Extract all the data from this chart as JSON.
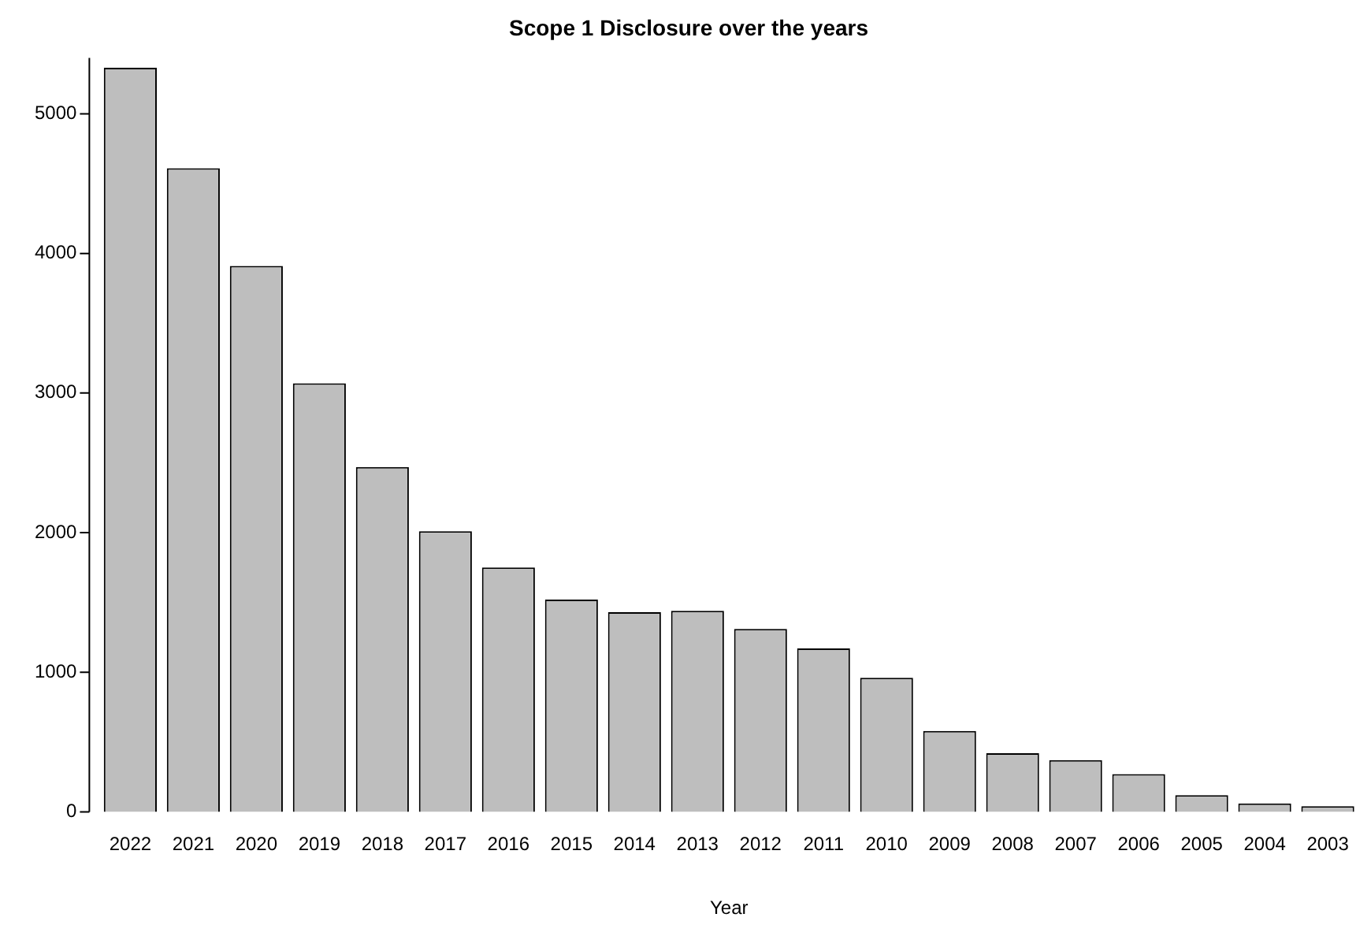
{
  "chart_data": {
    "type": "bar",
    "title": "Scope 1 Disclosure over the years",
    "xlabel": "Year",
    "categories": [
      "2022",
      "2021",
      "2020",
      "2019",
      "2018",
      "2017",
      "2016",
      "2015",
      "2014",
      "2013",
      "2012",
      "2011",
      "2010",
      "2009",
      "2008",
      "2007",
      "2006",
      "2005",
      "2004",
      "2003"
    ],
    "values": [
      5330,
      4610,
      3910,
      3070,
      2470,
      2010,
      1750,
      1520,
      1430,
      1440,
      1310,
      1170,
      960,
      580,
      420,
      370,
      270,
      120,
      60,
      40
    ],
    "color": "#bebebe",
    "ylim": [
      0,
      5400
    ],
    "yticks": [
      0,
      1000,
      2000,
      3000,
      4000,
      5000
    ],
    "grid": false,
    "legend": false
  }
}
